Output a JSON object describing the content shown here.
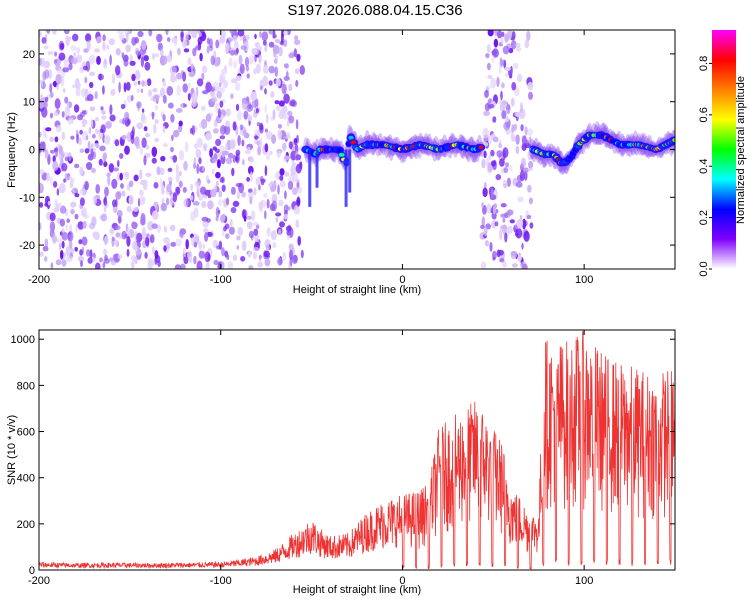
{
  "title": "S197.2026.088.04.15.C36",
  "chart_data": [
    {
      "type": "heatmap",
      "xlabel": "Height of straight line (km)",
      "ylabel": "Frequency (Hz)",
      "xlim": [
        -200,
        150
      ],
      "ylim": [
        -25,
        25
      ],
      "x_ticks": [
        -200,
        -100,
        0,
        100
      ],
      "y_ticks": [
        -20,
        -10,
        0,
        10,
        20
      ],
      "x_tick_labels": [
        "-200",
        "-100",
        "0",
        "100"
      ],
      "y_tick_labels": [
        "-20",
        "-10",
        "0",
        "10",
        "20"
      ],
      "colorbar": {
        "label": "Normalized spectral amplitude",
        "range": [
          0,
          0.93
        ],
        "ticks": [
          0.0,
          0.2,
          0.4,
          0.6,
          0.8
        ],
        "tick_labels": [
          "0.0",
          "0.2",
          "0.4",
          "0.6",
          "0.8"
        ],
        "colors": [
          "#ffffff",
          "#7f00ff",
          "#0000ff",
          "#00ffff",
          "#00ff00",
          "#ffff00",
          "#ff7f00",
          "#ff0000",
          "#ff00ff"
        ]
      },
      "noise_regions": [
        {
          "x": [
            -200,
            -55
          ],
          "y": [
            -25,
            25
          ]
        },
        {
          "x": [
            44,
            71
          ],
          "y": [
            -25,
            25
          ]
        }
      ],
      "signal_ridge": {
        "x": [
          -53,
          -48,
          -45,
          -40,
          -35,
          -31,
          -29,
          -25,
          -20,
          -10,
          0,
          10,
          20,
          30,
          40,
          47,
          55,
          65,
          72,
          78,
          83,
          88,
          92,
          97,
          103,
          110,
          120,
          130,
          140,
          150
        ],
        "y": [
          0,
          -1,
          0,
          0,
          0,
          -3,
          3,
          0,
          1,
          1,
          0,
          1,
          0,
          1,
          0,
          1,
          0,
          1,
          0,
          -1,
          -1,
          -3,
          -2,
          1,
          3,
          3,
          1,
          1,
          0,
          2
        ]
      }
    },
    {
      "type": "line",
      "xlabel": "Height of straight line (km)",
      "ylabel": "SNR (10 * v/v)",
      "xlim": [
        -200,
        150
      ],
      "ylim": [
        0,
        1040
      ],
      "x_ticks": [
        -200,
        -100,
        0,
        100
      ],
      "y_ticks": [
        0,
        200,
        400,
        600,
        800,
        1000
      ],
      "x_tick_labels": [
        "-200",
        "-100",
        "0",
        "100"
      ],
      "y_tick_labels": [
        "0",
        "200",
        "400",
        "600",
        "800",
        "1000"
      ],
      "color": "#ee3333",
      "x": [
        -200,
        -180,
        -160,
        -140,
        -120,
        -100,
        -90,
        -80,
        -70,
        -60,
        -50,
        -45,
        -40,
        -30,
        -20,
        -10,
        0,
        10,
        15,
        20,
        30,
        40,
        45,
        50,
        55,
        60,
        65,
        70,
        75,
        78,
        80,
        90,
        100,
        110,
        120,
        130,
        140,
        150
      ],
      "envelope": [
        35,
        30,
        32,
        30,
        32,
        35,
        45,
        60,
        90,
        160,
        230,
        180,
        150,
        160,
        250,
        310,
        330,
        350,
        400,
        620,
        680,
        740,
        700,
        620,
        560,
        360,
        320,
        250,
        250,
        1040,
        1000,
        1000,
        1040,
        950,
        900,
        880,
        850,
        900
      ]
    }
  ]
}
